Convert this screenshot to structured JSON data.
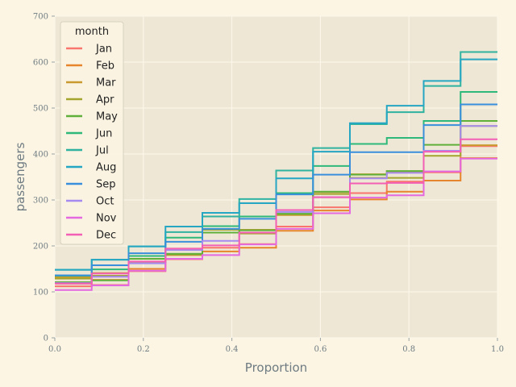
{
  "chart_data": {
    "type": "line",
    "subtype": "ecdf-step",
    "title": "",
    "xlabel": "Proportion",
    "ylabel": "passengers",
    "xlim": [
      0.0,
      1.0
    ],
    "ylim": [
      0,
      700
    ],
    "xticks": [
      "0.0",
      "0.2",
      "0.4",
      "0.6",
      "0.8",
      "1.0"
    ],
    "yticks": [
      "0",
      "100",
      "200",
      "300",
      "400",
      "500",
      "600",
      "700"
    ],
    "grid": true,
    "legend": {
      "title": "month",
      "position": "top-left"
    },
    "series": [
      {
        "name": "Jan",
        "color": "#f8766d",
        "values": [
          112,
          115,
          145,
          171,
          196,
          204,
          242,
          284,
          315,
          340,
          360,
          417
        ]
      },
      {
        "name": "Feb",
        "color": "#e7852c",
        "values": [
          118,
          126,
          150,
          180,
          188,
          196,
          233,
          277,
          301,
          318,
          342,
          391
        ]
      },
      {
        "name": "Mar",
        "color": "#c99a2e",
        "values": [
          132,
          141,
          178,
          193,
          236,
          235,
          267,
          317,
          356,
          362,
          406,
          419
        ]
      },
      {
        "name": "Apr",
        "color": "#a3a52e",
        "values": [
          129,
          135,
          163,
          181,
          235,
          227,
          269,
          313,
          348,
          348,
          396,
          461
        ]
      },
      {
        "name": "May",
        "color": "#5fb03a",
        "values": [
          121,
          125,
          172,
          183,
          229,
          234,
          270,
          318,
          355,
          363,
          420,
          472
        ]
      },
      {
        "name": "Jun",
        "color": "#2eb87a",
        "values": [
          135,
          149,
          178,
          218,
          243,
          264,
          315,
          374,
          422,
          435,
          472,
          535
        ]
      },
      {
        "name": "Jul",
        "color": "#2fb3a0",
        "values": [
          148,
          170,
          199,
          230,
          264,
          302,
          364,
          413,
          465,
          491,
          548,
          622
        ]
      },
      {
        "name": "Aug",
        "color": "#25a6c3",
        "values": [
          148,
          170,
          199,
          242,
          272,
          293,
          347,
          405,
          467,
          505,
          559,
          606
        ]
      },
      {
        "name": "Sep",
        "color": "#3a8fdc",
        "values": [
          136,
          158,
          184,
          209,
          237,
          259,
          312,
          355,
          404,
          404,
          463,
          508
        ]
      },
      {
        "name": "Oct",
        "color": "#a58af0",
        "values": [
          119,
          133,
          162,
          191,
          211,
          229,
          274,
          306,
          347,
          359,
          407,
          461
        ]
      },
      {
        "name": "Nov",
        "color": "#e468e0",
        "values": [
          104,
          114,
          146,
          172,
          180,
          203,
          237,
          271,
          305,
          310,
          362,
          390
        ]
      },
      {
        "name": "Dec",
        "color": "#f35fb4",
        "values": [
          118,
          140,
          166,
          194,
          201,
          229,
          278,
          306,
          336,
          337,
          405,
          432
        ]
      }
    ]
  }
}
